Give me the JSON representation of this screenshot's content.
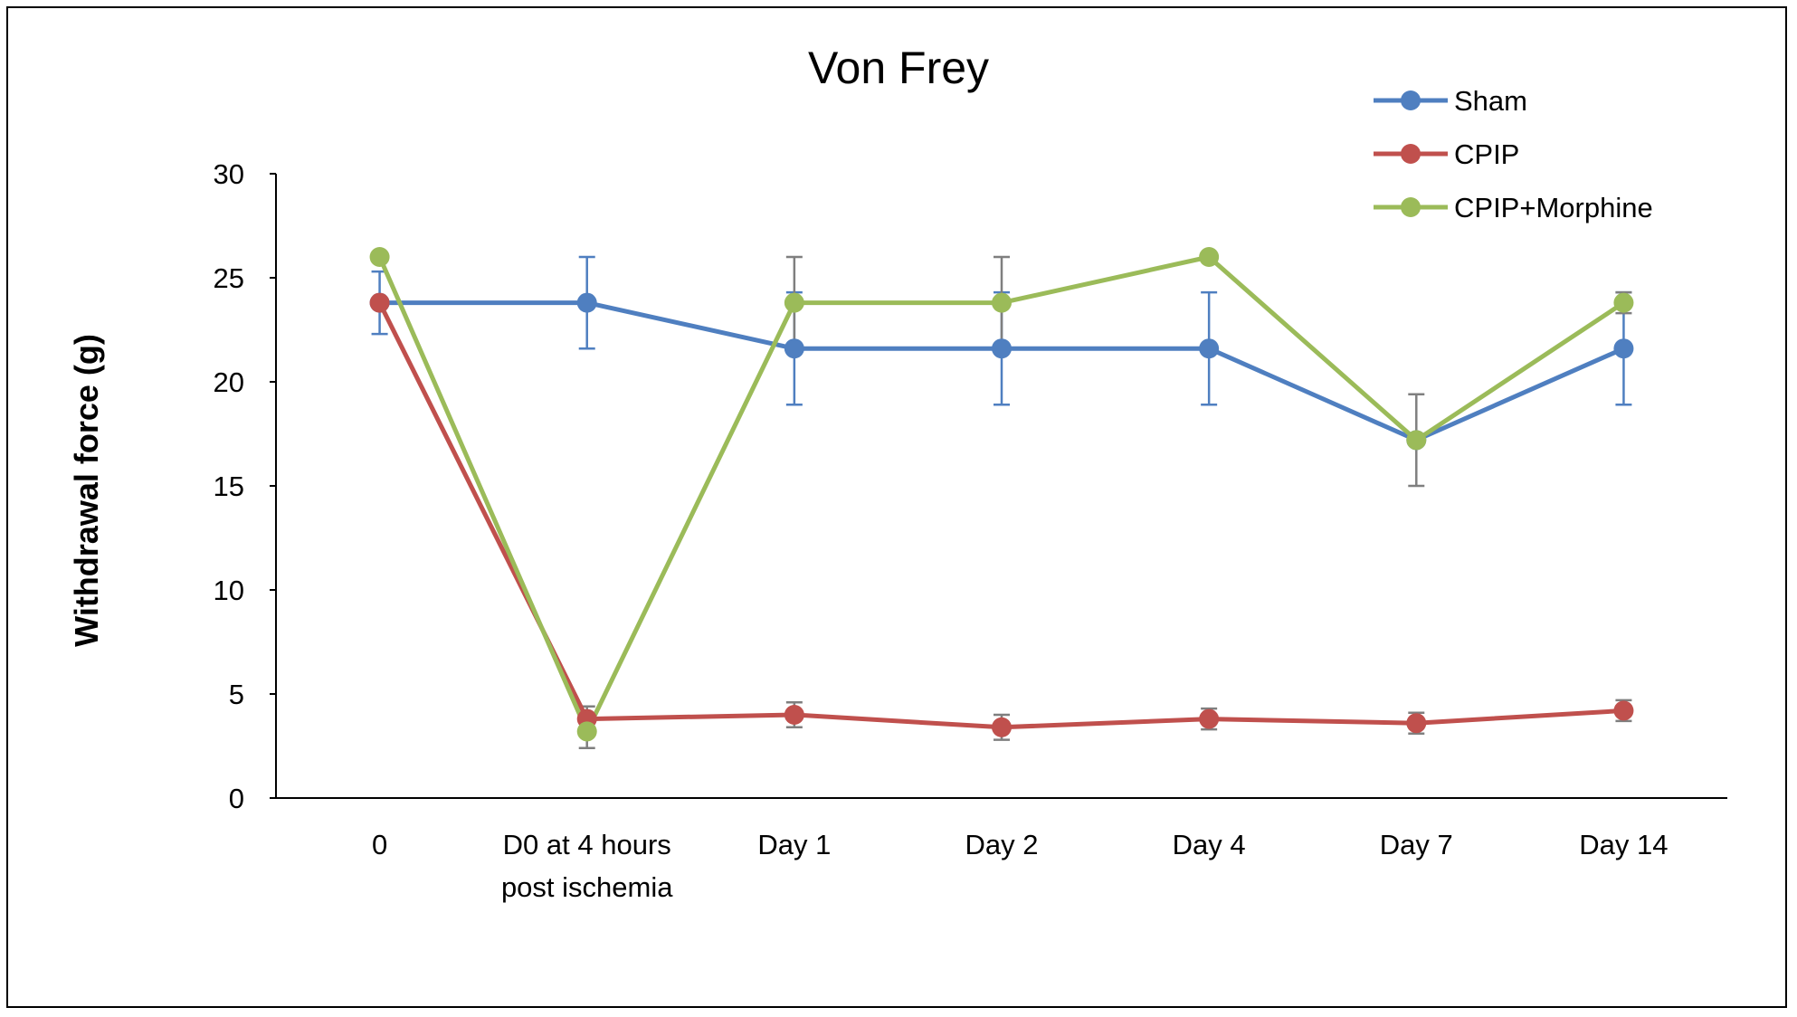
{
  "chart_data": {
    "type": "line",
    "title": "Von Frey",
    "xlabel": "",
    "ylabel": "Withdrawal force (g)",
    "ylim": [
      0,
      30
    ],
    "yticks": [
      0,
      5,
      10,
      15,
      20,
      25,
      30
    ],
    "categories": [
      [
        "0"
      ],
      [
        "D0 at 4 hours",
        "post ischemia"
      ],
      [
        "Day 1"
      ],
      [
        "Day 2"
      ],
      [
        "Day 4"
      ],
      [
        "Day 7"
      ],
      [
        "Day 14"
      ]
    ],
    "legend_position": "top-right",
    "grid": false,
    "series": [
      {
        "name": "Sham",
        "color": "#4f7fc0",
        "values": [
          23.8,
          23.8,
          21.6,
          21.6,
          21.6,
          17.2,
          21.6
        ],
        "error": [
          1.5,
          2.2,
          2.7,
          2.7,
          2.7,
          0,
          2.7
        ]
      },
      {
        "name": "CPIP",
        "color": "#c0504d",
        "values": [
          23.8,
          3.8,
          4.0,
          3.4,
          3.8,
          3.6,
          4.2
        ],
        "error": [
          0,
          0.6,
          0.6,
          0.6,
          0.5,
          0.5,
          0.5
        ]
      },
      {
        "name": "CPIP+Morphine",
        "color": "#9bbb59",
        "values": [
          26.0,
          3.2,
          23.8,
          23.8,
          26.0,
          17.2,
          23.8
        ],
        "error": [
          0,
          0.8,
          2.2,
          2.2,
          0,
          2.2,
          0.5
        ]
      }
    ]
  }
}
